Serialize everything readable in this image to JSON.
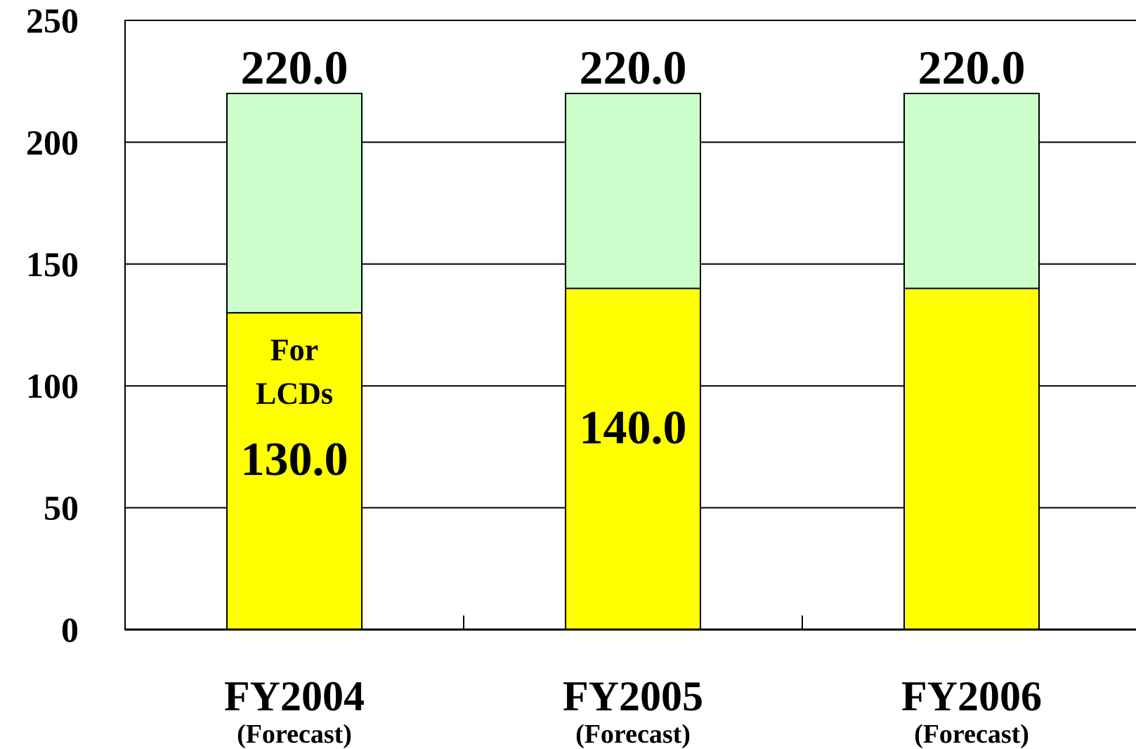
{
  "chart_data": {
    "type": "bar",
    "stacked": true,
    "categories": [
      "FY2004",
      "FY2005",
      "FY2006"
    ],
    "category_sublabels": [
      "(Forecast)",
      "(Forecast)",
      "(Forecast)"
    ],
    "series": [
      {
        "values": [
          130.0,
          140.0,
          140.0
        ],
        "color": "#ffff00"
      },
      {
        "values": [
          90.0,
          80.0,
          80.0
        ],
        "color": "#ccffcc"
      }
    ],
    "totals": [
      220.0,
      220.0,
      220.0
    ],
    "total_labels": [
      "220.0",
      "220.0",
      "220.0"
    ],
    "inner_labels": [
      "130.0",
      "140.0",
      ""
    ],
    "annotation": {
      "lines": [
        "For",
        "LCDs"
      ],
      "category_index": 0
    },
    "yticks": [
      "0",
      "50",
      "100",
      "150",
      "200",
      "250"
    ],
    "ylim": [
      0,
      250
    ],
    "grid": true,
    "legend": "none"
  }
}
